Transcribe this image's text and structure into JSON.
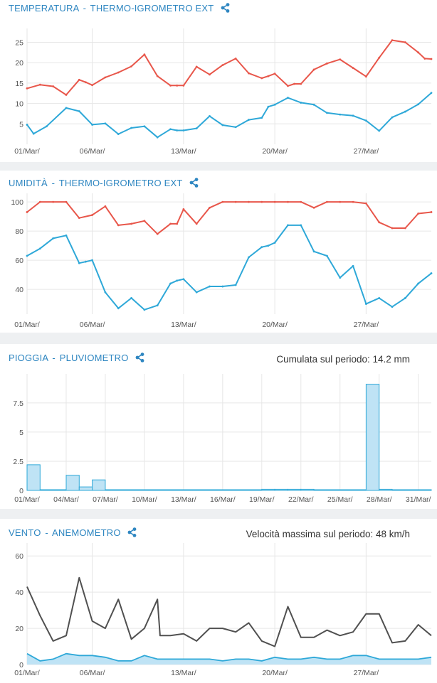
{
  "colors": {
    "header": "#2e86c1",
    "red_series": "#e8564a",
    "blue_series": "#2ea8d8",
    "wind_max": "#505050",
    "wind_fill": "#bfe3f5",
    "rain_fill": "#bfe3f5",
    "rain_stroke": "#2ea8d8"
  },
  "icons": {
    "share": "share-icon"
  },
  "panels": [
    {
      "name": "TEMPERATURA",
      "separator": "-",
      "sensor": "THERMO-IGROMETRO EXT",
      "summary": ""
    },
    {
      "name": "UMIDITÀ",
      "separator": "-",
      "sensor": "THERMO-IGROMETRO EXT",
      "summary": ""
    },
    {
      "name": "PIOGGIA",
      "separator": "-",
      "sensor": "PLUVIOMETRO",
      "summary": "Cumulata sul periodo: 14.2 mm"
    },
    {
      "name": "VENTO",
      "separator": "-",
      "sensor": "ANEMOMETRO",
      "summary": "Velocità massima sul periodo: 48 km/h"
    }
  ],
  "chart_data": [
    {
      "type": "line",
      "title": "TEMPERATURA - THERMO-IGROMETRO EXT",
      "x_range": [
        1,
        32
      ],
      "ylim": [
        0,
        27
      ],
      "y_ticks": [
        "5",
        "10",
        "15",
        "20",
        "25"
      ],
      "y_tick_values": [
        5,
        10,
        15,
        20,
        25
      ],
      "x_ticks": [
        "01/Mar/",
        "06/Mar/",
        "13/Mar/",
        "20/Mar/",
        "27/Mar/"
      ],
      "x_tick_days": [
        1,
        6,
        13,
        20,
        27
      ],
      "grid": true,
      "series": [
        {
          "color": "red",
          "x": [
            1,
            2,
            3,
            4,
            5,
            5.5,
            6,
            7,
            8,
            9,
            10,
            11,
            12,
            12.5,
            13,
            14,
            15,
            16,
            17,
            18,
            19,
            19.5,
            20,
            21,
            21.5,
            22,
            23,
            24,
            25,
            26,
            27,
            28,
            29,
            30,
            31,
            31.5,
            32
          ],
          "y": [
            13.7,
            14.6,
            14.2,
            12.1,
            15.8,
            15.2,
            14.5,
            16.4,
            17.6,
            19.1,
            22.0,
            16.7,
            14.4,
            14.4,
            14.4,
            19.0,
            17.1,
            19.4,
            21.0,
            17.4,
            16.2,
            16.7,
            17.3,
            14.3,
            14.8,
            14.8,
            18.3,
            19.8,
            20.8,
            18.7,
            16.6,
            21.2,
            25.5,
            25.0,
            22.5,
            21.0,
            20.9
          ]
        },
        {
          "color": "blue",
          "x": [
            1,
            1.5,
            2.5,
            4,
            5,
            6,
            7,
            8,
            9,
            10,
            11,
            12,
            12.5,
            13,
            14,
            15,
            16,
            17,
            18,
            19,
            19.5,
            20,
            21,
            22,
            23,
            24,
            25,
            26,
            27,
            28,
            29,
            30,
            31,
            32
          ],
          "y": [
            4.8,
            2.6,
            4.4,
            8.9,
            8.1,
            4.8,
            5.1,
            2.5,
            4.0,
            4.4,
            1.7,
            3.7,
            3.4,
            3.4,
            3.9,
            6.9,
            4.7,
            4.2,
            6.0,
            6.5,
            9.2,
            9.7,
            11.4,
            10.2,
            9.7,
            7.7,
            7.3,
            7.0,
            5.8,
            3.3,
            6.6,
            8.0,
            9.8,
            12.6
          ]
        }
      ]
    },
    {
      "type": "line",
      "title": "UMIDITÀ - THERMO-IGROMETRO EXT",
      "x_range": [
        1,
        32
      ],
      "ylim": [
        23,
        102
      ],
      "y_ticks": [
        "40",
        "60",
        "80",
        "100"
      ],
      "y_tick_values": [
        40,
        60,
        80,
        100
      ],
      "x_ticks": [
        "01/Mar/",
        "06/Mar/",
        "13/Mar/",
        "20/Mar/",
        "27/Mar/"
      ],
      "x_tick_days": [
        1,
        6,
        13,
        20,
        27
      ],
      "grid": true,
      "series": [
        {
          "color": "red",
          "x": [
            1,
            2,
            3,
            4,
            5,
            6,
            7,
            8,
            9,
            10,
            11,
            12,
            12.5,
            13,
            14,
            15,
            16,
            17,
            18,
            19,
            20,
            21,
            22,
            23,
            24,
            25,
            26,
            27,
            28,
            29,
            30,
            31,
            32
          ],
          "y": [
            93,
            100,
            100,
            100,
            89,
            91,
            97,
            84,
            85,
            87,
            78,
            85,
            85,
            95,
            85,
            96,
            100,
            100,
            100,
            100,
            100,
            100,
            100,
            96,
            100,
            100,
            100,
            99,
            86,
            82,
            82,
            92,
            93
          ]
        },
        {
          "color": "blue",
          "x": [
            1,
            2,
            3,
            4,
            5,
            5.5,
            6,
            7,
            8,
            9,
            10,
            11,
            12,
            12.5,
            13,
            14,
            15,
            16,
            17,
            18,
            19,
            19.5,
            20,
            21,
            22,
            23,
            24,
            25,
            26,
            27,
            28,
            29,
            30,
            31,
            32
          ],
          "y": [
            63,
            68,
            75,
            77,
            58,
            59,
            60,
            38,
            27,
            34,
            26,
            29,
            44,
            46,
            47,
            38,
            42,
            42,
            43,
            62,
            69,
            70,
            72,
            84,
            84,
            66,
            63,
            48,
            56,
            30,
            34,
            28,
            34,
            44,
            51
          ]
        }
      ]
    },
    {
      "type": "bar",
      "title": "PIOGGIA - PLUVIOMETRO",
      "ylim": [
        0,
        9.5
      ],
      "y_ticks": [
        "0",
        "2.5",
        "5",
        "7.5"
      ],
      "y_tick_values": [
        0,
        2.5,
        5,
        7.5
      ],
      "x_ticks": [
        "01/Mar/",
        "04/Mar/",
        "07/Mar/",
        "10/Mar/",
        "13/Mar/",
        "16/Mar/",
        "19/Mar/",
        "22/Mar/",
        "25/Mar/",
        "28/Mar/",
        "31/Mar/"
      ],
      "x_tick_days": [
        1,
        4,
        7,
        10,
        13,
        16,
        19,
        22,
        25,
        28,
        31
      ],
      "categories": [
        "01/Mar",
        "02/Mar",
        "03/Mar",
        "04/Mar",
        "05/Mar",
        "06/Mar",
        "07/Mar",
        "08/Mar",
        "09/Mar",
        "10/Mar",
        "11/Mar",
        "12/Mar",
        "13/Mar",
        "14/Mar",
        "15/Mar",
        "16/Mar",
        "17/Mar",
        "18/Mar",
        "19/Mar",
        "20/Mar",
        "21/Mar",
        "22/Mar",
        "23/Mar",
        "24/Mar",
        "25/Mar",
        "26/Mar",
        "27/Mar",
        "28/Mar",
        "29/Mar",
        "30/Mar",
        "31/Mar"
      ],
      "values": [
        2.2,
        0,
        0,
        1.3,
        0.3,
        0.9,
        0,
        0,
        0,
        0,
        0,
        0,
        0,
        0,
        0,
        0,
        0,
        0,
        0.1,
        0.1,
        0.1,
        0.1,
        0,
        0,
        0,
        0,
        9.1,
        0.1,
        0,
        0,
        0
      ],
      "grid": true
    },
    {
      "type": "line",
      "title": "VENTO - ANEMOMETRO",
      "x_range": [
        1,
        32
      ],
      "ylim": [
        0,
        64
      ],
      "y_ticks": [
        "0",
        "20",
        "40",
        "60"
      ],
      "y_tick_values": [
        0,
        20,
        40,
        60
      ],
      "x_ticks": [
        "01/Mar/",
        "06/Mar/",
        "13/Mar/",
        "20/Mar/",
        "27/Mar/"
      ],
      "x_tick_days": [
        1,
        6,
        13,
        20,
        27
      ],
      "grid": true,
      "series": [
        {
          "color": "dark",
          "x": [
            1,
            2,
            3,
            4,
            5,
            6,
            7,
            8,
            9,
            10,
            11,
            11.2,
            12,
            13,
            14,
            15,
            16,
            17,
            18,
            19,
            20,
            21,
            22,
            23,
            24,
            25,
            26,
            27,
            28,
            29,
            30,
            31,
            32
          ],
          "y": [
            43,
            27,
            13,
            16,
            48,
            24,
            20,
            36,
            14,
            20,
            36,
            16,
            16,
            17,
            13,
            20,
            20,
            18,
            23,
            13,
            10,
            32,
            15,
            15,
            19,
            16,
            18,
            28,
            28,
            12,
            13,
            22,
            16
          ]
        },
        {
          "color": "area",
          "x": [
            1,
            2,
            3,
            4,
            5,
            6,
            7,
            8,
            9,
            10,
            11,
            12,
            13,
            14,
            15,
            16,
            17,
            18,
            19,
            20,
            21,
            22,
            23,
            24,
            25,
            26,
            27,
            28,
            29,
            30,
            31,
            32
          ],
          "y": [
            6,
            2,
            3,
            6,
            5,
            5,
            4,
            2,
            2,
            5,
            3,
            3,
            3,
            3,
            3,
            2,
            3,
            3,
            2,
            4,
            3,
            3,
            4,
            3,
            3,
            5,
            5,
            3,
            3,
            3,
            3,
            4
          ]
        }
      ]
    }
  ]
}
